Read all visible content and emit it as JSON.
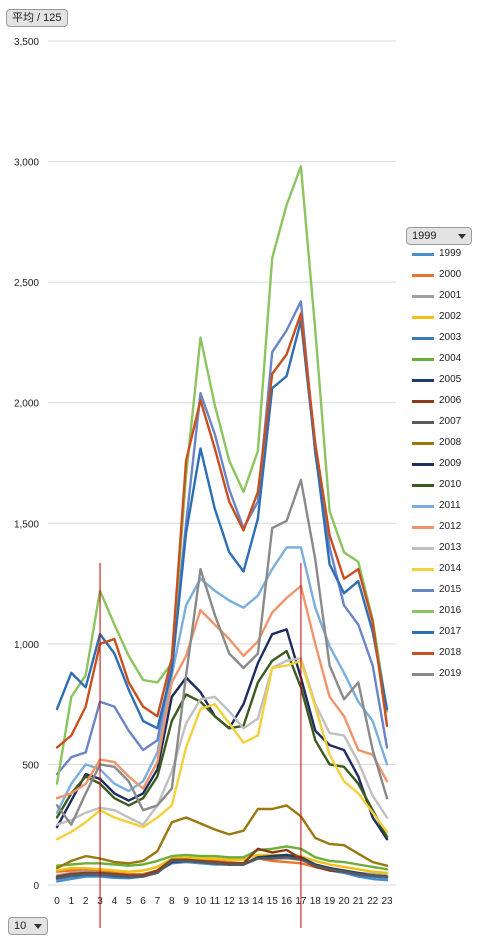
{
  "header": {
    "measure_label": "平均 / 125"
  },
  "footer": {
    "hour_filter_label": "10"
  },
  "legend_filter": {
    "label": "1999"
  },
  "colors": {
    "grid": "#d9d9d9",
    "axis_text": "#222222",
    "marker_line": "#c00000"
  },
  "chart_data": {
    "type": "line",
    "x": [
      0,
      1,
      2,
      3,
      4,
      5,
      6,
      7,
      8,
      9,
      10,
      11,
      12,
      13,
      14,
      15,
      16,
      17,
      18,
      19,
      20,
      21,
      22,
      23
    ],
    "ylim": [
      0,
      3500
    ],
    "y_ticks": [
      "0",
      "500",
      "1,000",
      "1,500",
      "2,000",
      "2,500",
      "3,000",
      "3,500"
    ],
    "y_tick_values": [
      0,
      500,
      1000,
      1500,
      2000,
      2500,
      3000,
      3500
    ],
    "grid": true,
    "legend": "right",
    "vertical_markers": [
      3,
      17
    ],
    "series": [
      {
        "name": "1999",
        "color": "#4a90c8",
        "values": [
          15,
          25,
          35,
          35,
          30,
          28,
          35,
          55,
          90,
          95,
          90,
          85,
          85,
          85,
          110,
          120,
          125,
          115,
          80,
          60,
          50,
          35,
          25,
          20
        ]
      },
      {
        "name": "2000",
        "color": "#e8742e",
        "values": [
          55,
          60,
          65,
          60,
          50,
          45,
          45,
          60,
          105,
          110,
          105,
          100,
          95,
          90,
          110,
          100,
          95,
          90,
          75,
          65,
          55,
          50,
          40,
          35
        ]
      },
      {
        "name": "2001",
        "color": "#a0a0a0",
        "values": [
          40,
          50,
          55,
          50,
          45,
          40,
          40,
          55,
          100,
          105,
          100,
          95,
          90,
          85,
          110,
          110,
          110,
          105,
          85,
          70,
          60,
          50,
          45,
          40
        ]
      },
      {
        "name": "2002",
        "color": "#f2c010",
        "values": [
          60,
          70,
          70,
          65,
          60,
          55,
          60,
          75,
          110,
          115,
          110,
          110,
          105,
          105,
          125,
          125,
          125,
          120,
          100,
          85,
          75,
          65,
          55,
          50
        ]
      },
      {
        "name": "2003",
        "color": "#3a78c0",
        "values": [
          25,
          35,
          40,
          40,
          35,
          30,
          35,
          55,
          95,
          100,
          95,
          90,
          85,
          85,
          115,
          120,
          120,
          110,
          80,
          65,
          55,
          40,
          35,
          30
        ]
      },
      {
        "name": "2004",
        "color": "#6cae3c",
        "values": [
          80,
          85,
          90,
          90,
          85,
          80,
          85,
          100,
          120,
          125,
          120,
          120,
          115,
          115,
          145,
          150,
          160,
          150,
          115,
          100,
          95,
          85,
          75,
          65
        ]
      },
      {
        "name": "2005",
        "color": "#1e3c6e",
        "values": [
          30,
          40,
          45,
          45,
          40,
          35,
          40,
          55,
          95,
          100,
          95,
          90,
          85,
          85,
          115,
          120,
          125,
          115,
          85,
          70,
          60,
          50,
          40,
          35
        ]
      },
      {
        "name": "2006",
        "color": "#8c3c14",
        "values": [
          35,
          45,
          50,
          50,
          45,
          40,
          40,
          60,
          105,
          105,
          100,
          95,
          90,
          90,
          150,
          135,
          145,
          110,
          75,
          60,
          55,
          45,
          40,
          35
        ]
      },
      {
        "name": "2007",
        "color": "#5a5a5a",
        "values": [
          30,
          40,
          45,
          45,
          40,
          35,
          35,
          50,
          100,
          100,
          95,
          90,
          85,
          85,
          110,
          110,
          115,
          105,
          80,
          65,
          55,
          45,
          40,
          35
        ]
      },
      {
        "name": "2008",
        "color": "#9a7810",
        "values": [
          70,
          100,
          120,
          110,
          95,
          90,
          100,
          140,
          260,
          280,
          255,
          230,
          210,
          225,
          315,
          315,
          330,
          285,
          195,
          170,
          165,
          130,
          95,
          80
        ]
      },
      {
        "name": "2009",
        "color": "#1e2c5e",
        "values": [
          240,
          350,
          460,
          440,
          380,
          350,
          380,
          480,
          780,
          860,
          800,
          700,
          650,
          750,
          920,
          1040,
          1060,
          860,
          640,
          580,
          560,
          450,
          280,
          190
        ]
      },
      {
        "name": "2010",
        "color": "#3c5a1e",
        "values": [
          280,
          380,
          450,
          420,
          360,
          330,
          360,
          450,
          680,
          790,
          760,
          700,
          650,
          660,
          840,
          930,
          970,
          820,
          600,
          500,
          490,
          420,
          310,
          200
        ]
      },
      {
        "name": "2011",
        "color": "#7aaedc",
        "values": [
          300,
          420,
          500,
          480,
          420,
          390,
          430,
          550,
          870,
          1160,
          1270,
          1220,
          1180,
          1150,
          1200,
          1310,
          1400,
          1400,
          1150,
          990,
          880,
          760,
          680,
          500
        ]
      },
      {
        "name": "2012",
        "color": "#f0956a",
        "values": [
          360,
          380,
          420,
          520,
          510,
          450,
          400,
          510,
          840,
          950,
          1140,
          1080,
          1020,
          950,
          1010,
          1130,
          1190,
          1240,
          1000,
          780,
          700,
          560,
          540,
          430
        ]
      },
      {
        "name": "2013",
        "color": "#c0c0c0",
        "values": [
          250,
          270,
          300,
          320,
          310,
          280,
          250,
          330,
          470,
          670,
          770,
          780,
          720,
          650,
          690,
          900,
          930,
          940,
          750,
          630,
          620,
          510,
          370,
          280
        ]
      },
      {
        "name": "2014",
        "color": "#f4d03c",
        "values": [
          190,
          220,
          260,
          310,
          280,
          260,
          240,
          280,
          330,
          570,
          730,
          750,
          670,
          590,
          620,
          900,
          910,
          930,
          740,
          540,
          430,
          380,
          300,
          220
        ]
      },
      {
        "name": "2015",
        "color": "#6a84c8",
        "values": [
          460,
          530,
          550,
          760,
          740,
          640,
          560,
          600,
          920,
          1500,
          2040,
          1870,
          1640,
          1480,
          1590,
          2210,
          2300,
          2420,
          1790,
          1400,
          1160,
          1080,
          910,
          570
        ]
      },
      {
        "name": "2016",
        "color": "#8cc460",
        "values": [
          420,
          780,
          870,
          1220,
          1080,
          950,
          850,
          840,
          920,
          1700,
          2270,
          1990,
          1760,
          1630,
          1800,
          2600,
          2820,
          2980,
          2300,
          1550,
          1380,
          1340,
          1100,
          720
        ]
      },
      {
        "name": "2017",
        "color": "#2e6eb4",
        "values": [
          730,
          880,
          820,
          1040,
          960,
          810,
          680,
          650,
          890,
          1460,
          1810,
          1560,
          1380,
          1300,
          1520,
          2060,
          2110,
          2340,
          1800,
          1330,
          1210,
          1260,
          1050,
          730
        ]
      },
      {
        "name": "2018",
        "color": "#c8501e",
        "values": [
          570,
          620,
          740,
          1000,
          1020,
          840,
          740,
          700,
          940,
          1760,
          2010,
          1810,
          1590,
          1470,
          1630,
          2120,
          2200,
          2370,
          1830,
          1450,
          1270,
          1310,
          1090,
          660
        ]
      },
      {
        "name": "2019",
        "color": "#8a8a8a",
        "values": [
          330,
          250,
          380,
          500,
          490,
          430,
          310,
          330,
          400,
          870,
          1310,
          1120,
          960,
          900,
          960,
          1480,
          1510,
          1680,
          1350,
          910,
          770,
          840,
          560,
          360
        ]
      }
    ]
  }
}
